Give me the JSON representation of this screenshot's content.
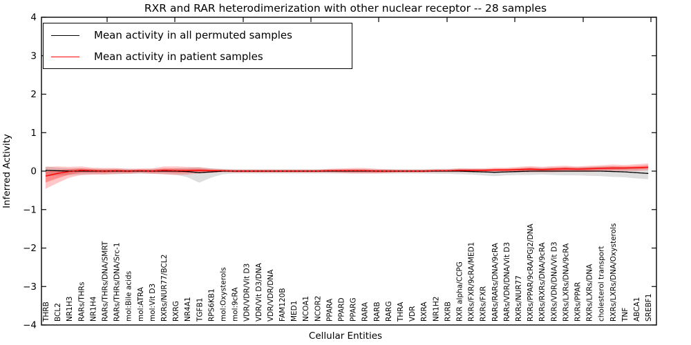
{
  "chart_data": {
    "type": "line",
    "title": "RXR and RAR heterodimerization with other nuclear receptor -- 28 samples",
    "xlabel": "Cellular Entities",
    "ylabel": "Inferred Activity",
    "ylim": [
      -4,
      4
    ],
    "ytick_values": [
      4,
      3,
      2,
      1,
      0,
      -1,
      -2,
      -3,
      -4
    ],
    "ytick_labels": [
      "4",
      "3",
      "2",
      "1",
      "0",
      "−1",
      "−2",
      "−3",
      "−4"
    ],
    "grid": false,
    "legend_position": "upper left",
    "categories": [
      "THRB",
      "BCL2",
      "NR1H3",
      "RARs/THRs",
      "NR1H4",
      "RARs/THRs/DNA/SMRT",
      "RARs/THRs/DNA/Src-1",
      "mol:Bile acids",
      "mol:ATRA",
      "mol:Vit D3",
      "RXRs/NUR77/BCL2",
      "RXRG",
      "NR4A1",
      "TGFB1",
      "RPS6KB1",
      "mol:Oxysterols",
      "mol:9cRA",
      "VDR/VDR/Vit D3",
      "VDR/Vit D3/DNA",
      "VDR/VDR/DNA",
      "FAM120B",
      "MED1",
      "NCOA1",
      "NCOR2",
      "PPARA",
      "PPARD",
      "PPARG",
      "RARA",
      "RARB",
      "RARG",
      "THRA",
      "VDR",
      "RXRA",
      "NR1H2",
      "RXRB",
      "RXR alpha/CCPG",
      "RXRs/FXR/9cRA/MED1",
      "RXRs/FXR",
      "RARs/RARs/DNA/9cRA",
      "RARs/VDR/DNA/Vit D3",
      "RXRs/NUR77",
      "RXRs/PPAR/9cRA/PGJ2/DNA",
      "RXRs/RXRs/DNA/9cRA",
      "RXRs/VDR/DNA/Vit D3",
      "RXRs/LXRs/DNA/9cRA",
      "RXRs/PPAR",
      "RXRs/LXRs/DNA",
      "cholesterol transport",
      "RXRs/LXRs/DNA/Oxysterols",
      "TNF",
      "ABCA1",
      "SREBF1"
    ],
    "series": [
      {
        "name": "Mean activity in all permuted samples",
        "color": "#000000",
        "band_color": "#999999",
        "values": [
          0.02,
          0.01,
          0,
          0,
          0,
          0,
          0,
          0,
          0,
          0,
          0,
          0,
          -0.01,
          -0.04,
          -0.02,
          0,
          0,
          0,
          0,
          0,
          0,
          0,
          0,
          0,
          0,
          0,
          0,
          0,
          0,
          0,
          0,
          0,
          0,
          0,
          0,
          0,
          -0.01,
          -0.02,
          -0.03,
          -0.02,
          -0.01,
          0,
          0,
          0,
          0,
          0,
          0,
          0,
          -0.01,
          -0.02,
          -0.04,
          -0.06
        ],
        "band_upper": [
          0.1,
          0.08,
          0.07,
          0.07,
          0.06,
          0.06,
          0.06,
          0.06,
          0.05,
          0.06,
          0.06,
          0.07,
          0.09,
          0.14,
          0.09,
          0.06,
          0.05,
          0.05,
          0.05,
          0.05,
          0.05,
          0.05,
          0.05,
          0.05,
          0.05,
          0.05,
          0.05,
          0.05,
          0.05,
          0.05,
          0.05,
          0.05,
          0.05,
          0.06,
          0.06,
          0.07,
          0.07,
          0.08,
          0.08,
          0.08,
          0.08,
          0.09,
          0.08,
          0.09,
          0.1,
          0.1,
          0.11,
          0.12,
          0.13,
          0.13,
          0.14,
          0.14
        ],
        "band_lower": [
          0.16,
          0.12,
          0.1,
          0.09,
          0.08,
          0.08,
          0.08,
          0.07,
          0.07,
          0.07,
          0.08,
          0.09,
          0.15,
          0.26,
          0.15,
          0.08,
          0.06,
          0.06,
          0.06,
          0.06,
          0.06,
          0.06,
          0.06,
          0.06,
          0.06,
          0.06,
          0.06,
          0.06,
          0.06,
          0.06,
          0.06,
          0.06,
          0.06,
          0.07,
          0.07,
          0.08,
          0.08,
          0.09,
          0.1,
          0.09,
          0.09,
          0.1,
          0.09,
          0.1,
          0.11,
          0.11,
          0.12,
          0.13,
          0.14,
          0.14,
          0.15,
          0.15
        ]
      },
      {
        "name": "Mean activity in patient samples",
        "color": "#ff0000",
        "band_color": "#ff0000",
        "values": [
          -0.13,
          -0.06,
          -0.01,
          0.02,
          0.01,
          0,
          0.01,
          0,
          0.01,
          0,
          0.02,
          0.01,
          0.01,
          0.02,
          0.01,
          0.01,
          0,
          0,
          0,
          0,
          0,
          0,
          0,
          0,
          0.01,
          0.01,
          0.01,
          0.01,
          0,
          0,
          0,
          0,
          0,
          0.01,
          0.01,
          0.02,
          0.02,
          0.02,
          0.03,
          0.03,
          0.04,
          0.05,
          0.04,
          0.05,
          0.06,
          0.05,
          0.06,
          0.07,
          0.08,
          0.08,
          0.09,
          0.1
        ],
        "band_upper": [
          0.24,
          0.18,
          0.12,
          0.1,
          0.08,
          0.08,
          0.07,
          0.06,
          0.06,
          0.07,
          0.1,
          0.11,
          0.1,
          0.08,
          0.06,
          0.04,
          0.04,
          0.04,
          0.04,
          0.04,
          0.04,
          0.04,
          0.04,
          0.04,
          0.05,
          0.06,
          0.07,
          0.07,
          0.06,
          0.05,
          0.04,
          0.04,
          0.04,
          0.04,
          0.04,
          0.05,
          0.05,
          0.05,
          0.06,
          0.06,
          0.07,
          0.08,
          0.07,
          0.08,
          0.08,
          0.07,
          0.08,
          0.08,
          0.09,
          0.08,
          0.09,
          0.1
        ],
        "band_lower": [
          0.33,
          0.25,
          0.16,
          0.12,
          0.1,
          0.09,
          0.08,
          0.07,
          0.06,
          0.07,
          0.1,
          0.11,
          0.1,
          0.08,
          0.06,
          0.04,
          0.04,
          0.04,
          0.04,
          0.04,
          0.04,
          0.04,
          0.04,
          0.04,
          0.05,
          0.06,
          0.07,
          0.07,
          0.06,
          0.05,
          0.04,
          0.04,
          0.04,
          0.04,
          0.04,
          0.05,
          0.05,
          0.05,
          0.06,
          0.06,
          0.07,
          0.08,
          0.07,
          0.08,
          0.08,
          0.07,
          0.08,
          0.08,
          0.09,
          0.08,
          0.09,
          0.08
        ]
      }
    ]
  }
}
